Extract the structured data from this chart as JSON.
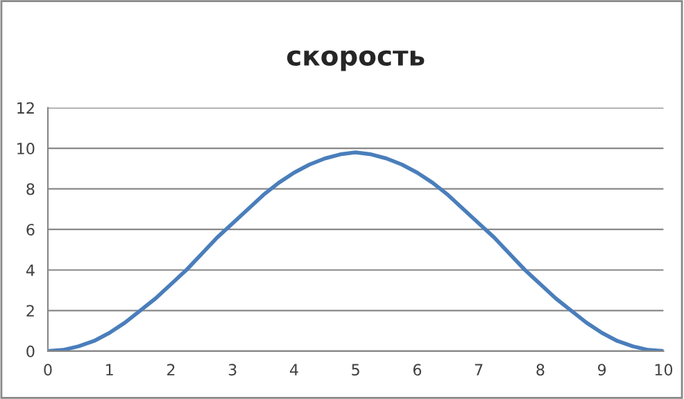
{
  "chart_data": {
    "type": "line",
    "title": "скорость",
    "x": [
      0,
      0.25,
      0.5,
      0.75,
      1,
      1.25,
      1.5,
      1.75,
      2,
      2.25,
      2.5,
      2.75,
      3,
      3.25,
      3.5,
      3.75,
      4,
      4.25,
      4.5,
      4.75,
      5,
      5.25,
      5.5,
      5.75,
      6,
      6.25,
      6.5,
      6.75,
      7,
      7.25,
      7.5,
      7.75,
      8,
      8.25,
      8.5,
      8.75,
      9,
      9.25,
      9.5,
      9.75,
      10
    ],
    "series": [
      {
        "color": "#4a7ebb",
        "values": [
          0,
          0.06,
          0.24,
          0.5,
          0.9,
          1.4,
          2.0,
          2.6,
          3.3,
          4.0,
          4.8,
          5.6,
          6.3,
          7.0,
          7.7,
          8.3,
          8.8,
          9.2,
          9.5,
          9.7,
          9.8,
          9.7,
          9.5,
          9.2,
          8.8,
          8.3,
          7.7,
          7.0,
          6.3,
          5.6,
          4.8,
          4.0,
          3.3,
          2.6,
          2.0,
          1.4,
          0.9,
          0.5,
          0.24,
          0.06,
          0
        ]
      }
    ],
    "xlim": [
      0,
      10
    ],
    "xticks": [
      0,
      1,
      2,
      3,
      4,
      5,
      6,
      7,
      8,
      9,
      10
    ],
    "ylim": [
      0,
      12
    ],
    "yticks": [
      0,
      2,
      4,
      6,
      8,
      10,
      12
    ],
    "grid": "y",
    "legend": false
  }
}
